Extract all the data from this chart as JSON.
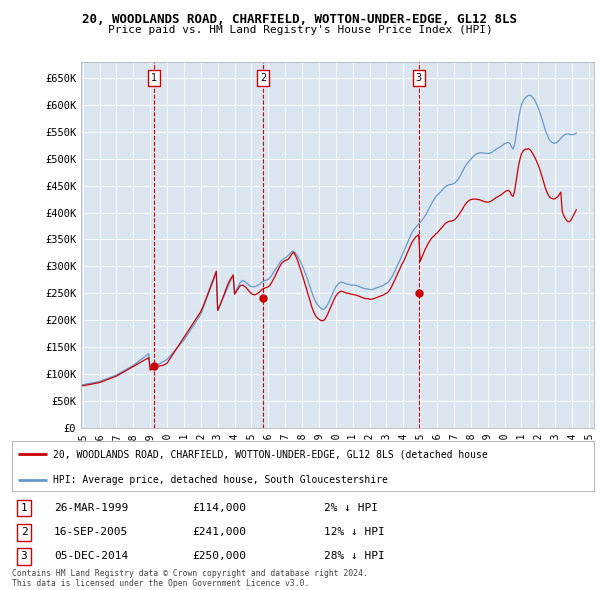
{
  "title_line1": "20, WOODLANDS ROAD, CHARFIELD, WOTTON-UNDER-EDGE, GL12 8LS",
  "title_line2": "Price paid vs. HM Land Registry's House Price Index (HPI)",
  "bg_color": "#ffffff",
  "plot_bg_color": "#dce6f1",
  "grid_color": "#ffffff",
  "red_line_color": "#cc0000",
  "blue_line_color": "#6699cc",
  "ylim": [
    0,
    680000
  ],
  "yticks": [
    0,
    50000,
    100000,
    150000,
    200000,
    250000,
    300000,
    350000,
    400000,
    450000,
    500000,
    550000,
    600000,
    650000
  ],
  "ytick_labels": [
    "£0",
    "£50K",
    "£100K",
    "£150K",
    "£200K",
    "£250K",
    "£300K",
    "£350K",
    "£400K",
    "£450K",
    "£500K",
    "£550K",
    "£600K",
    "£650K"
  ],
  "sale_date_nums": [
    1999.208,
    2005.708,
    2014.917
  ],
  "sale_prices": [
    114000,
    241000,
    250000
  ],
  "sale_numbers": [
    "1",
    "2",
    "3"
  ],
  "legend_red": "20, WOODLANDS ROAD, CHARFIELD, WOTTON-UNDER-EDGE, GL12 8LS (detached house",
  "legend_blue": "HPI: Average price, detached house, South Gloucestershire",
  "table_rows": [
    {
      "num": "1",
      "date": "26-MAR-1999",
      "price": "£114,000",
      "hpi": "2% ↓ HPI"
    },
    {
      "num": "2",
      "date": "16-SEP-2005",
      "price": "£241,000",
      "hpi": "12% ↓ HPI"
    },
    {
      "num": "3",
      "date": "05-DEC-2014",
      "price": "£250,000",
      "hpi": "28% ↓ HPI"
    }
  ],
  "footer": "Contains HM Land Registry data © Crown copyright and database right 2024.\nThis data is licensed under the Open Government Licence v3.0.",
  "hpi_dates": [
    1995.0,
    1995.083,
    1995.167,
    1995.25,
    1995.333,
    1995.417,
    1995.5,
    1995.583,
    1995.667,
    1995.75,
    1995.833,
    1995.917,
    1996.0,
    1996.083,
    1996.167,
    1996.25,
    1996.333,
    1996.417,
    1996.5,
    1996.583,
    1996.667,
    1996.75,
    1996.833,
    1996.917,
    1997.0,
    1997.083,
    1997.167,
    1997.25,
    1997.333,
    1997.417,
    1997.5,
    1997.583,
    1997.667,
    1997.75,
    1997.833,
    1997.917,
    1998.0,
    1998.083,
    1998.167,
    1998.25,
    1998.333,
    1998.417,
    1998.5,
    1998.583,
    1998.667,
    1998.75,
    1998.833,
    1998.917,
    1999.0,
    1999.083,
    1999.167,
    1999.25,
    1999.333,
    1999.417,
    1999.5,
    1999.583,
    1999.667,
    1999.75,
    1999.833,
    1999.917,
    2000.0,
    2000.083,
    2000.167,
    2000.25,
    2000.333,
    2000.417,
    2000.5,
    2000.583,
    2000.667,
    2000.75,
    2000.833,
    2000.917,
    2001.0,
    2001.083,
    2001.167,
    2001.25,
    2001.333,
    2001.417,
    2001.5,
    2001.583,
    2001.667,
    2001.75,
    2001.833,
    2001.917,
    2002.0,
    2002.083,
    2002.167,
    2002.25,
    2002.333,
    2002.417,
    2002.5,
    2002.583,
    2002.667,
    2002.75,
    2002.833,
    2002.917,
    2003.0,
    2003.083,
    2003.167,
    2003.25,
    2003.333,
    2003.417,
    2003.5,
    2003.583,
    2003.667,
    2003.75,
    2003.833,
    2003.917,
    2004.0,
    2004.083,
    2004.167,
    2004.25,
    2004.333,
    2004.417,
    2004.5,
    2004.583,
    2004.667,
    2004.75,
    2004.833,
    2004.917,
    2005.0,
    2005.083,
    2005.167,
    2005.25,
    2005.333,
    2005.417,
    2005.5,
    2005.583,
    2005.667,
    2005.75,
    2005.833,
    2005.917,
    2006.0,
    2006.083,
    2006.167,
    2006.25,
    2006.333,
    2006.417,
    2006.5,
    2006.583,
    2006.667,
    2006.75,
    2006.833,
    2006.917,
    2007.0,
    2007.083,
    2007.167,
    2007.25,
    2007.333,
    2007.417,
    2007.5,
    2007.583,
    2007.667,
    2007.75,
    2007.833,
    2007.917,
    2008.0,
    2008.083,
    2008.167,
    2008.25,
    2008.333,
    2008.417,
    2008.5,
    2008.583,
    2008.667,
    2008.75,
    2008.833,
    2008.917,
    2009.0,
    2009.083,
    2009.167,
    2009.25,
    2009.333,
    2009.417,
    2009.5,
    2009.583,
    2009.667,
    2009.75,
    2009.833,
    2009.917,
    2010.0,
    2010.083,
    2010.167,
    2010.25,
    2010.333,
    2010.417,
    2010.5,
    2010.583,
    2010.667,
    2010.75,
    2010.833,
    2010.917,
    2011.0,
    2011.083,
    2011.167,
    2011.25,
    2011.333,
    2011.417,
    2011.5,
    2011.583,
    2011.667,
    2011.75,
    2011.833,
    2011.917,
    2012.0,
    2012.083,
    2012.167,
    2012.25,
    2012.333,
    2012.417,
    2012.5,
    2012.583,
    2012.667,
    2012.75,
    2012.833,
    2012.917,
    2013.0,
    2013.083,
    2013.167,
    2013.25,
    2013.333,
    2013.417,
    2013.5,
    2013.583,
    2013.667,
    2013.75,
    2013.833,
    2013.917,
    2014.0,
    2014.083,
    2014.167,
    2014.25,
    2014.333,
    2014.417,
    2014.5,
    2014.583,
    2014.667,
    2014.75,
    2014.833,
    2014.917,
    2015.0,
    2015.083,
    2015.167,
    2015.25,
    2015.333,
    2015.417,
    2015.5,
    2015.583,
    2015.667,
    2015.75,
    2015.833,
    2015.917,
    2016.0,
    2016.083,
    2016.167,
    2016.25,
    2016.333,
    2016.417,
    2016.5,
    2016.583,
    2016.667,
    2016.75,
    2016.833,
    2016.917,
    2017.0,
    2017.083,
    2017.167,
    2017.25,
    2017.333,
    2017.417,
    2017.5,
    2017.583,
    2017.667,
    2017.75,
    2017.833,
    2017.917,
    2018.0,
    2018.083,
    2018.167,
    2018.25,
    2018.333,
    2018.417,
    2018.5,
    2018.583,
    2018.667,
    2018.75,
    2018.833,
    2018.917,
    2019.0,
    2019.083,
    2019.167,
    2019.25,
    2019.333,
    2019.417,
    2019.5,
    2019.583,
    2019.667,
    2019.75,
    2019.833,
    2019.917,
    2020.0,
    2020.083,
    2020.167,
    2020.25,
    2020.333,
    2020.417,
    2020.5,
    2020.583,
    2020.667,
    2020.75,
    2020.833,
    2020.917,
    2021.0,
    2021.083,
    2021.167,
    2021.25,
    2021.333,
    2021.417,
    2021.5,
    2021.583,
    2021.667,
    2021.75,
    2021.833,
    2021.917,
    2022.0,
    2022.083,
    2022.167,
    2022.25,
    2022.333,
    2022.417,
    2022.5,
    2022.583,
    2022.667,
    2022.75,
    2022.833,
    2022.917,
    2023.0,
    2023.083,
    2023.167,
    2023.25,
    2023.333,
    2023.417,
    2023.5,
    2023.583,
    2023.667,
    2023.75,
    2023.833,
    2023.917,
    2024.0,
    2024.083,
    2024.167,
    2024.25
  ],
  "hpi_vals": [
    80000,
    80500,
    81000,
    81500,
    82000,
    82500,
    83000,
    83500,
    84000,
    84500,
    85000,
    85500,
    86000,
    87000,
    88000,
    89000,
    90000,
    91000,
    92000,
    93000,
    94000,
    95000,
    96000,
    97000,
    98000,
    99500,
    101000,
    102500,
    104000,
    105500,
    107000,
    108500,
    110000,
    111500,
    113000,
    114500,
    116000,
    118000,
    120000,
    122000,
    124000,
    126000,
    128000,
    130000,
    132000,
    134000,
    136000,
    138000,
    109000,
    110500,
    112000,
    113500,
    115000,
    116500,
    118000,
    119500,
    121000,
    122500,
    124000,
    125500,
    127000,
    130000,
    133000,
    136000,
    139000,
    142000,
    145000,
    148000,
    151000,
    154000,
    157000,
    160000,
    163000,
    167000,
    171000,
    175000,
    179000,
    183000,
    187000,
    191000,
    195000,
    199000,
    203000,
    207000,
    211000,
    218000,
    225000,
    232000,
    239000,
    246000,
    253000,
    260000,
    267000,
    274000,
    281000,
    288000,
    218000,
    224000,
    230000,
    236000,
    242000,
    248000,
    254000,
    260000,
    266000,
    272000,
    278000,
    284000,
    250000,
    255000,
    260000,
    265000,
    270000,
    272000,
    274000,
    272000,
    270000,
    268000,
    266000,
    264000,
    262000,
    262000,
    262000,
    263000,
    264000,
    265000,
    267000,
    270000,
    272000,
    273000,
    274000,
    275000,
    276000,
    279000,
    282000,
    286000,
    290000,
    294000,
    298000,
    302000,
    306000,
    310000,
    312000,
    314000,
    316000,
    318000,
    320000,
    322000,
    326000,
    328000,
    328000,
    326000,
    322000,
    318000,
    313000,
    308000,
    302000,
    296000,
    289000,
    283000,
    275000,
    267000,
    259000,
    251000,
    244000,
    238000,
    233000,
    229000,
    226000,
    223000,
    221000,
    220000,
    221000,
    224000,
    228000,
    233000,
    239000,
    245000,
    251000,
    257000,
    262000,
    265000,
    268000,
    270000,
    271000,
    270000,
    269000,
    268000,
    267000,
    267000,
    266000,
    265000,
    265000,
    265000,
    265000,
    264000,
    263000,
    262000,
    261000,
    260000,
    259000,
    258000,
    258000,
    258000,
    257000,
    257000,
    257000,
    258000,
    259000,
    260000,
    261000,
    262000,
    263000,
    264000,
    265000,
    267000,
    268000,
    270000,
    273000,
    277000,
    281000,
    286000,
    291000,
    297000,
    303000,
    308000,
    314000,
    320000,
    326000,
    332000,
    338000,
    344000,
    350000,
    356000,
    362000,
    366000,
    370000,
    373000,
    376000,
    379000,
    382000,
    385000,
    388000,
    392000,
    396000,
    401000,
    406000,
    411000,
    416000,
    421000,
    425000,
    429000,
    432000,
    435000,
    437000,
    440000,
    443000,
    446000,
    448000,
    450000,
    451000,
    452000,
    452000,
    453000,
    454000,
    456000,
    459000,
    462000,
    466000,
    471000,
    476000,
    481000,
    486000,
    490000,
    493000,
    496000,
    499000,
    502000,
    505000,
    507000,
    509000,
    510000,
    511000,
    511000,
    511000,
    511000,
    510000,
    510000,
    510000,
    510000,
    511000,
    512000,
    514000,
    516000,
    518000,
    519000,
    521000,
    522000,
    524000,
    526000,
    528000,
    529000,
    530000,
    530000,
    528000,
    522000,
    518000,
    525000,
    540000,
    558000,
    575000,
    589000,
    600000,
    607000,
    611000,
    614000,
    616000,
    618000,
    618000,
    617000,
    614000,
    611000,
    606000,
    600000,
    594000,
    587000,
    579000,
    571000,
    562000,
    553000,
    546000,
    540000,
    535000,
    532000,
    530000,
    529000,
    529000,
    530000,
    532000,
    535000,
    538000,
    541000,
    543000,
    545000,
    546000,
    546000,
    546000,
    545000,
    545000,
    545000,
    546000,
    548000
  ],
  "red_vals": [
    78000,
    78500,
    79000,
    79500,
    80000,
    80500,
    81000,
    81500,
    82000,
    82500,
    83000,
    83500,
    84000,
    85000,
    86000,
    87000,
    88000,
    89000,
    90000,
    91000,
    92000,
    93000,
    94000,
    95000,
    96000,
    97500,
    99000,
    100500,
    102000,
    103500,
    105000,
    106500,
    108000,
    109500,
    111000,
    112500,
    114000,
    115500,
    117000,
    118500,
    120000,
    121500,
    123000,
    124500,
    126000,
    127500,
    129000,
    130500,
    107000,
    108500,
    110000,
    111500,
    113000,
    114000,
    114500,
    115000,
    115500,
    116000,
    117000,
    118500,
    120000,
    124000,
    128000,
    132000,
    136000,
    140000,
    144000,
    148000,
    152000,
    156000,
    160000,
    164000,
    168000,
    172000,
    176000,
    180000,
    184000,
    188000,
    192000,
    196000,
    200000,
    204000,
    208000,
    212000,
    216000,
    222000,
    228000,
    235000,
    242000,
    249000,
    256000,
    263000,
    270000,
    277000,
    284000,
    291000,
    218000,
    224000,
    230000,
    237000,
    244000,
    251000,
    258000,
    265000,
    271000,
    276000,
    280000,
    284000,
    248000,
    252000,
    256000,
    260000,
    264000,
    265000,
    265000,
    263000,
    261000,
    258000,
    255000,
    252000,
    249000,
    248000,
    247000,
    248000,
    249000,
    251000,
    253000,
    256000,
    258000,
    259000,
    260000,
    261000,
    262000,
    265000,
    268000,
    273000,
    278000,
    283000,
    289000,
    294000,
    299000,
    304000,
    307000,
    309000,
    311000,
    312000,
    313000,
    316000,
    320000,
    324000,
    326000,
    322000,
    316000,
    309000,
    301000,
    294000,
    285000,
    277000,
    268000,
    260000,
    250000,
    242000,
    233000,
    224000,
    217000,
    211000,
    207000,
    204000,
    202000,
    200000,
    199000,
    199000,
    201000,
    205000,
    210000,
    216000,
    222000,
    228000,
    234000,
    240000,
    245000,
    248000,
    251000,
    253000,
    254000,
    253000,
    252000,
    251000,
    250000,
    250000,
    249000,
    248000,
    248000,
    247000,
    247000,
    246000,
    245000,
    244000,
    243000,
    242000,
    241000,
    240000,
    240000,
    240000,
    239000,
    239000,
    239000,
    240000,
    241000,
    242000,
    243000,
    244000,
    245000,
    246000,
    247000,
    249000,
    250000,
    252000,
    255000,
    259000,
    264000,
    270000,
    275000,
    281000,
    287000,
    292000,
    298000,
    304000,
    308000,
    314000,
    320000,
    326000,
    332000,
    338000,
    344000,
    348000,
    352000,
    355000,
    357000,
    359000,
    309000,
    316000,
    322000,
    328000,
    334000,
    339000,
    344000,
    348000,
    352000,
    355000,
    357000,
    360000,
    362000,
    365000,
    368000,
    371000,
    374000,
    377000,
    380000,
    382000,
    383000,
    384000,
    384000,
    385000,
    386000,
    388000,
    391000,
    394000,
    398000,
    402000,
    406000,
    411000,
    415000,
    418000,
    421000,
    423000,
    424000,
    425000,
    425000,
    425000,
    425000,
    424000,
    424000,
    423000,
    422000,
    421000,
    420000,
    420000,
    419000,
    420000,
    421000,
    422000,
    424000,
    426000,
    428000,
    429000,
    431000,
    432000,
    434000,
    436000,
    438000,
    440000,
    441000,
    441000,
    438000,
    432000,
    430000,
    438000,
    455000,
    472000,
    488000,
    500000,
    509000,
    514000,
    516000,
    518000,
    518000,
    519000,
    517000,
    514000,
    510000,
    505000,
    500000,
    494000,
    488000,
    481000,
    472000,
    464000,
    455000,
    446000,
    439000,
    433000,
    429000,
    427000,
    426000,
    425000,
    426000,
    428000,
    430000,
    434000,
    438000,
    402000,
    395000,
    390000,
    386000,
    383000,
    383000,
    385000,
    390000,
    395000,
    400000,
    405000
  ]
}
